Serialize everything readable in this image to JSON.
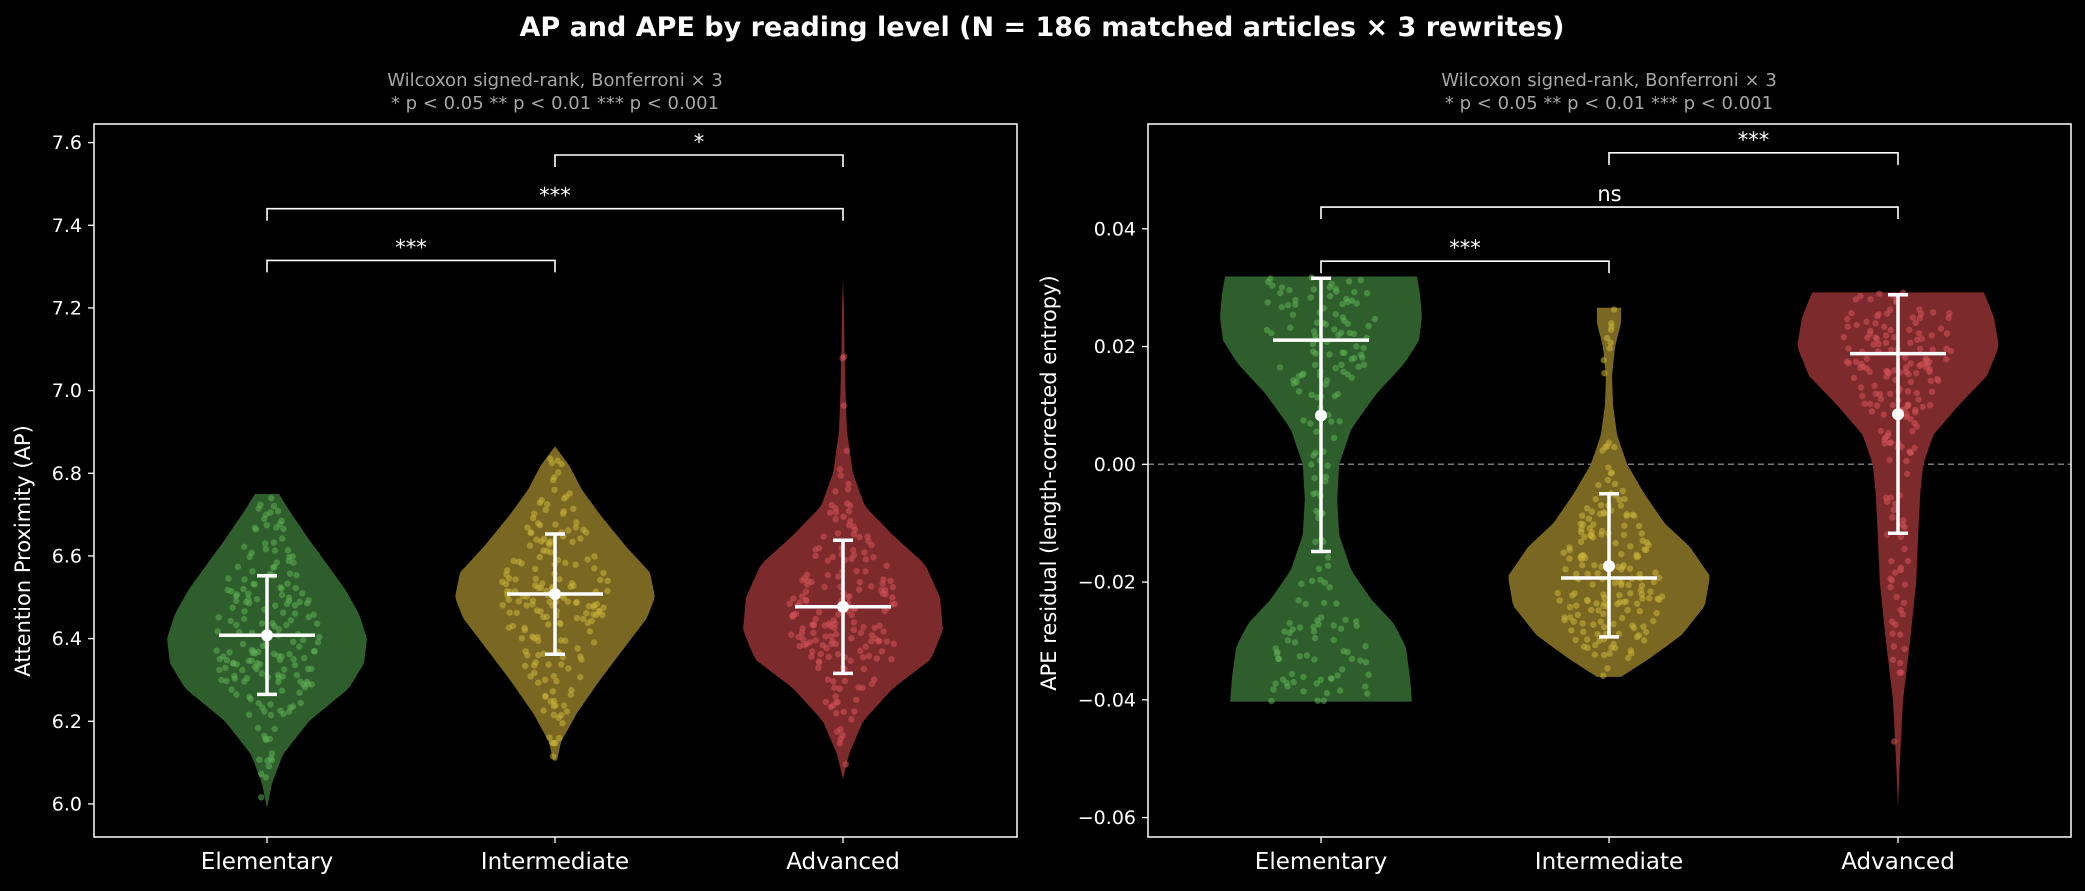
{
  "figure": {
    "title": "AP and APE by reading level  (N = 186 matched articles × 3 rewrites)"
  },
  "colors": {
    "background": "#000000",
    "text": "#ffffff",
    "subtitle": "#a6a6a6",
    "Elementary": "#2e5e2c",
    "Intermediate": "#7a6822",
    "Advanced": "#7d2a2c",
    "Elementary_points": "#5fae55",
    "Intermediate_points": "#c9b23a",
    "Advanced_points": "#d4525a"
  },
  "chart_data": [
    {
      "type": "violin",
      "subtitle_line1": "Wilcoxon signed-rank, Bonferroni × 3",
      "subtitle_line2": "* p < 0.05     ** p < 0.01     *** p < 0.001",
      "xlabel": "",
      "ylabel": "Attention Proximity  (AP)",
      "ylim": [
        5.92,
        7.645
      ],
      "yticks": [
        6.0,
        6.2,
        6.4,
        6.6,
        6.8,
        7.0,
        7.2,
        7.4,
        7.6
      ],
      "ytick_labels": [
        "6.0",
        "6.2",
        "6.4",
        "6.6",
        "6.8",
        "7.0",
        "7.2",
        "7.4",
        "7.6"
      ],
      "categories": [
        "Elementary",
        "Intermediate",
        "Advanced"
      ],
      "series": [
        {
          "category": "Elementary",
          "min": 5.99,
          "max": 6.75,
          "mean": 6.408,
          "sd_low": 6.265,
          "sd_high": 6.552,
          "density": [
            [
              5.99,
              0.0
            ],
            [
              6.05,
              0.05
            ],
            [
              6.12,
              0.16
            ],
            [
              6.2,
              0.42
            ],
            [
              6.28,
              0.82
            ],
            [
              6.34,
              0.97
            ],
            [
              6.4,
              1.0
            ],
            [
              6.46,
              0.92
            ],
            [
              6.52,
              0.78
            ],
            [
              6.58,
              0.6
            ],
            [
              6.64,
              0.42
            ],
            [
              6.7,
              0.25
            ],
            [
              6.73,
              0.17
            ],
            [
              6.75,
              0.12
            ]
          ]
        },
        {
          "category": "Intermediate",
          "min": 6.105,
          "max": 6.865,
          "mean": 6.508,
          "sd_low": 6.362,
          "sd_high": 6.653,
          "density": [
            [
              6.105,
              0.02
            ],
            [
              6.15,
              0.06
            ],
            [
              6.22,
              0.22
            ],
            [
              6.3,
              0.45
            ],
            [
              6.38,
              0.7
            ],
            [
              6.45,
              0.92
            ],
            [
              6.5,
              1.0
            ],
            [
              6.56,
              0.95
            ],
            [
              6.62,
              0.72
            ],
            [
              6.7,
              0.45
            ],
            [
              6.76,
              0.27
            ],
            [
              6.82,
              0.14
            ],
            [
              6.865,
              0.0
            ]
          ]
        },
        {
          "category": "Advanced",
          "min": 6.06,
          "max": 7.27,
          "mean": 6.477,
          "sd_low": 6.316,
          "sd_high": 6.638,
          "density": [
            [
              6.06,
              0.0
            ],
            [
              6.12,
              0.06
            ],
            [
              6.2,
              0.2
            ],
            [
              6.28,
              0.5
            ],
            [
              6.35,
              0.88
            ],
            [
              6.42,
              1.0
            ],
            [
              6.5,
              0.97
            ],
            [
              6.58,
              0.82
            ],
            [
              6.65,
              0.5
            ],
            [
              6.72,
              0.22
            ],
            [
              6.8,
              0.1
            ],
            [
              6.9,
              0.04
            ],
            [
              7.0,
              0.025
            ],
            [
              7.1,
              0.015
            ],
            [
              7.2,
              0.01
            ],
            [
              7.27,
              0.0
            ]
          ]
        }
      ],
      "significance": [
        {
          "from": "Elementary",
          "to": "Intermediate",
          "y": 7.315,
          "label": "***"
        },
        {
          "from": "Elementary",
          "to": "Advanced",
          "y": 7.44,
          "label": "***"
        },
        {
          "from": "Intermediate",
          "to": "Advanced",
          "y": 7.57,
          "label": "*"
        }
      ],
      "reference_line": null
    },
    {
      "type": "violin",
      "subtitle_line1": "Wilcoxon signed-rank, Bonferroni × 3",
      "subtitle_line2": "* p < 0.05     ** p < 0.01     *** p < 0.001",
      "xlabel": "",
      "ylabel": "APE residual  (length-corrected entropy)",
      "ylim": [
        -0.0633,
        0.0578
      ],
      "yticks": [
        -0.06,
        -0.04,
        -0.02,
        0.0,
        0.02,
        0.04
      ],
      "ytick_labels": [
        "−0.06",
        "−0.04",
        "−0.02",
        "0.00",
        "0.02",
        "0.04"
      ],
      "categories": [
        "Elementary",
        "Intermediate",
        "Advanced"
      ],
      "series": [
        {
          "category": "Elementary",
          "min": -0.0403,
          "max": 0.0319,
          "mean": 0.0083,
          "sd_low": -0.0148,
          "sd_high": 0.0316,
          "median_bar": 0.0211,
          "density": [
            [
              -0.0403,
              0.9
            ],
            [
              -0.036,
              0.88
            ],
            [
              -0.031,
              0.84
            ],
            [
              -0.027,
              0.72
            ],
            [
              -0.023,
              0.5
            ],
            [
              -0.018,
              0.3
            ],
            [
              -0.012,
              0.18
            ],
            [
              -0.006,
              0.16
            ],
            [
              0.0,
              0.18
            ],
            [
              0.006,
              0.3
            ],
            [
              0.012,
              0.55
            ],
            [
              0.017,
              0.82
            ],
            [
              0.021,
              0.97
            ],
            [
              0.025,
              1.0
            ],
            [
              0.029,
              0.98
            ],
            [
              0.0319,
              0.95
            ]
          ]
        },
        {
          "category": "Intermediate",
          "min": -0.0361,
          "max": 0.0266,
          "mean": -0.0173,
          "sd_low": -0.0293,
          "sd_high": -0.005,
          "median_bar": -0.0193,
          "density": [
            [
              -0.0361,
              0.12
            ],
            [
              -0.033,
              0.4
            ],
            [
              -0.029,
              0.72
            ],
            [
              -0.024,
              0.95
            ],
            [
              -0.019,
              1.0
            ],
            [
              -0.014,
              0.8
            ],
            [
              -0.01,
              0.55
            ],
            [
              -0.005,
              0.35
            ],
            [
              0.0,
              0.18
            ],
            [
              0.005,
              0.08
            ],
            [
              0.01,
              0.04
            ],
            [
              0.015,
              0.03
            ],
            [
              0.02,
              0.06
            ],
            [
              0.024,
              0.12
            ],
            [
              0.0266,
              0.12
            ]
          ]
        },
        {
          "category": "Advanced",
          "min": -0.0583,
          "max": 0.0292,
          "mean": 0.0085,
          "sd_low": -0.0117,
          "sd_high": 0.0288,
          "median_bar": 0.0188,
          "density": [
            [
              -0.0583,
              0.0
            ],
            [
              -0.05,
              0.02
            ],
            [
              -0.04,
              0.05
            ],
            [
              -0.03,
              0.12
            ],
            [
              -0.02,
              0.18
            ],
            [
              -0.012,
              0.2
            ],
            [
              -0.005,
              0.22
            ],
            [
              0.0,
              0.25
            ],
            [
              0.005,
              0.35
            ],
            [
              0.01,
              0.6
            ],
            [
              0.015,
              0.88
            ],
            [
              0.02,
              1.0
            ],
            [
              0.025,
              0.95
            ],
            [
              0.0292,
              0.85
            ]
          ]
        }
      ],
      "significance": [
        {
          "from": "Elementary",
          "to": "Intermediate",
          "y": 0.0345,
          "label": "***"
        },
        {
          "from": "Elementary",
          "to": "Advanced",
          "y": 0.0437,
          "label": "ns"
        },
        {
          "from": "Intermediate",
          "to": "Advanced",
          "y": 0.0529,
          "label": "***"
        }
      ],
      "reference_line": 0.0
    }
  ]
}
